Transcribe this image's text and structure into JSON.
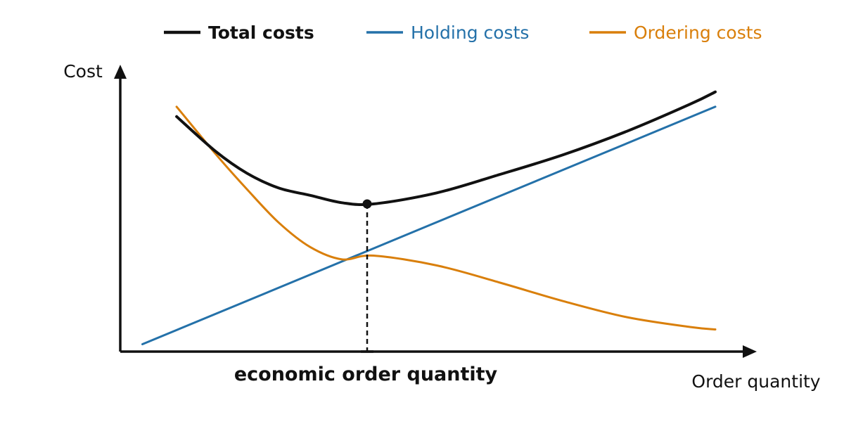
{
  "chart_data": {
    "type": "line",
    "title": "",
    "xlabel": "Order quantity",
    "ylabel": "Cost",
    "annotation": "economic order quantity",
    "xlim": [
      0,
      10
    ],
    "ylim": [
      0,
      10
    ],
    "grid": false,
    "legend_position": "top",
    "series": [
      {
        "name": "Total costs",
        "color": "#111111",
        "bold": true,
        "x": [
          0.89,
          1.5,
          2.0,
          2.5,
          3.0,
          3.5,
          4.0,
          5.0,
          6.0,
          7.0,
          8.0,
          9.0,
          9.4
        ],
        "y": [
          9.55,
          8.15,
          7.25,
          6.65,
          6.35,
          6.05,
          6.0,
          6.45,
          7.2,
          8.0,
          8.95,
          10.05,
          10.55
        ]
      },
      {
        "name": "Holding costs",
        "color": "#2471a9",
        "bold": false,
        "x": [
          0.35,
          9.4
        ],
        "y": [
          0.3,
          9.95
        ]
      },
      {
        "name": "Ordering costs",
        "color": "#d97f0b",
        "bold": false,
        "x": [
          0.89,
          1.5,
          2.0,
          2.5,
          3.0,
          3.5,
          4.0,
          5.0,
          6.0,
          7.0,
          8.0,
          9.0,
          9.4
        ],
        "y": [
          9.95,
          8.05,
          6.6,
          5.25,
          4.25,
          3.75,
          3.9,
          3.5,
          2.8,
          2.05,
          1.4,
          1.0,
          0.9
        ]
      }
    ],
    "optimum": {
      "x": 3.9,
      "y": 6.0
    }
  }
}
